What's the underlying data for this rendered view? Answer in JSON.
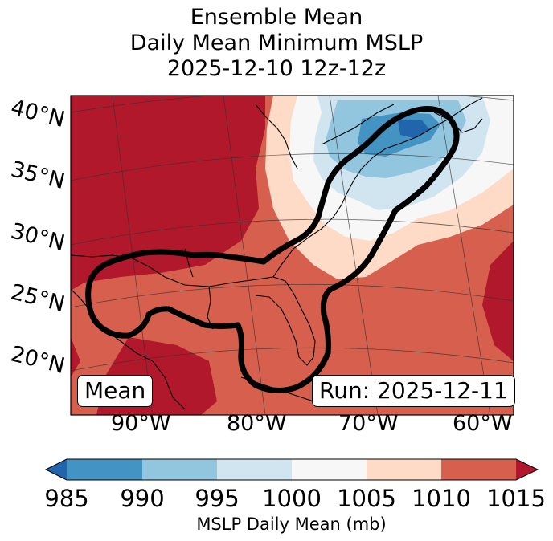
{
  "title": {
    "line1": "Ensemble Mean",
    "line2": "Daily Mean Minimum MSLP",
    "line3": "2025-12-10 12z-12z"
  },
  "map": {
    "lat_labels": [
      "40°N",
      "35°N",
      "30°N",
      "25°N",
      "20°N"
    ],
    "lon_labels": [
      "90°W",
      "80°W",
      "70°W",
      "60°W"
    ],
    "box_left": "Mean",
    "box_right": "Run: 2025-12-11",
    "low_center": {
      "lat": 38,
      "lon": -66,
      "value_mb": 987
    },
    "contour": "Ensemble mean 1000 mb envelope (Gulf of Mexico to Gulf of Maine)"
  },
  "colorbar": {
    "label": "MSLP Daily Mean (mb)",
    "ticks": [
      "985",
      "990",
      "995",
      "1000",
      "1005",
      "1010",
      "1015"
    ],
    "colors": {
      "under": "#2166ac",
      "985-990": "#4393c3",
      "990-995": "#92c5de",
      "995-1000": "#d1e5f0",
      "1000-1005": "#f7f7f7",
      "1005-1010": "#fddbc7",
      "1010-1015": "#d6604d",
      "over": "#b2182b"
    }
  }
}
